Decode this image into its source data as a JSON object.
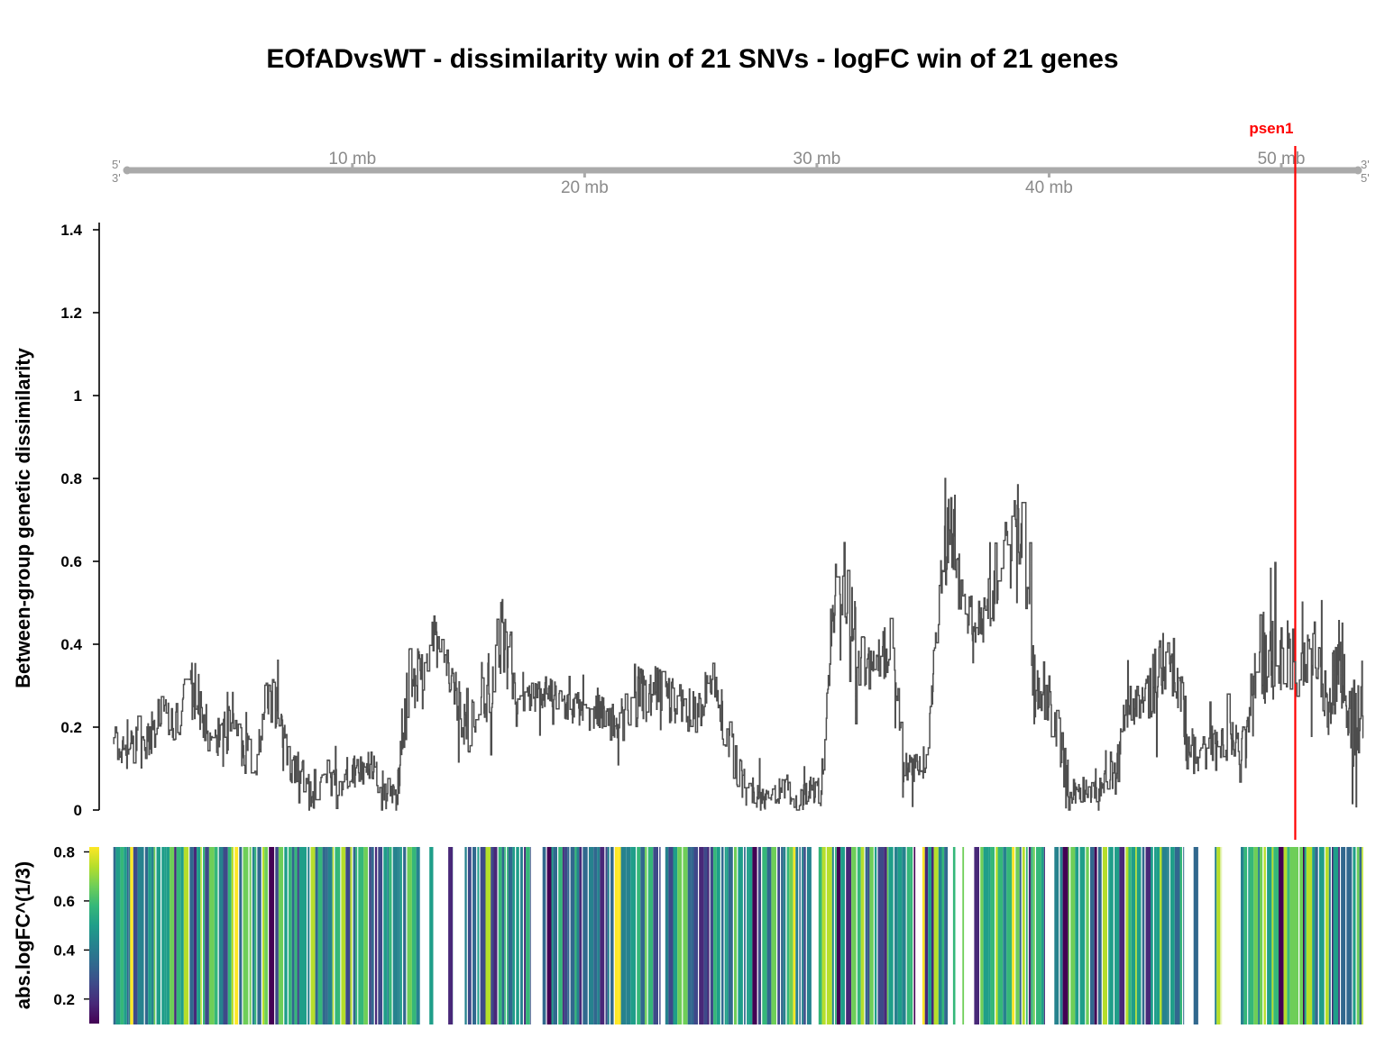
{
  "chart_data": {
    "type": "line",
    "title": "EOfADvsWT - dissimilarity win of 21 SNVs - logFC win of 21 genes",
    "ideogram": {
      "start_labels": [
        "5'",
        "3'"
      ],
      "end_labels": [
        "3'",
        "5'"
      ],
      "ticks": [
        {
          "mb": 10,
          "label": "10 mb"
        },
        {
          "mb": 20,
          "label": "20 mb"
        },
        {
          "mb": 30,
          "label": "30 mb"
        },
        {
          "mb": 40,
          "label": "40 mb"
        },
        {
          "mb": 50,
          "label": "50 mb"
        }
      ],
      "range_mb": [
        0.3,
        53.3
      ],
      "color": "#aaaaaa"
    },
    "marker": {
      "label": "psen1",
      "mb": 50.6,
      "color": "#ff0000"
    },
    "line_panel": {
      "ylabel": "Between-group genetic dissimilarity",
      "yticks": [
        {
          "v": 0,
          "label": "0"
        },
        {
          "v": 0.2,
          "label": "0.2"
        },
        {
          "v": 0.4,
          "label": "0.4"
        },
        {
          "v": 0.6,
          "label": "0.6"
        },
        {
          "v": 0.8,
          "label": "0.8"
        },
        {
          "v": 1,
          "label": "1"
        },
        {
          "v": 1.2,
          "label": "1.2"
        },
        {
          "v": 1.4,
          "label": "1.4"
        }
      ],
      "ylim": [
        0,
        1.4
      ],
      "xlim_mb": [
        -0.3,
        53.3
      ],
      "line_color": "#4d4d4d",
      "series": [
        {
          "x": [
            0.3,
            0.8,
            1.3,
            1.8,
            2.3,
            2.8,
            3.3,
            3.8,
            4.3,
            4.8,
            5.3,
            5.8,
            6.3,
            6.8,
            7.3,
            7.8,
            8.3,
            8.8,
            9.3,
            9.8,
            10.3,
            10.8,
            11.3,
            11.8,
            12.3,
            12.8,
            13.3,
            13.8,
            14.3,
            14.8,
            15.3,
            15.8,
            16.3,
            16.8,
            17.3,
            17.8,
            18.3,
            18.8,
            19.3,
            19.8,
            20.3,
            20.8,
            21.3,
            21.8,
            22.3,
            22.8,
            23.3,
            23.8,
            24.3,
            24.8,
            25.3,
            25.8,
            26.3,
            26.8,
            27.3,
            27.8,
            28.3,
            28.8,
            29.3,
            29.8,
            30.3,
            30.8,
            31.3,
            31.8,
            32.3,
            32.8,
            33.3,
            33.8,
            34.3,
            34.8,
            35.3,
            35.8,
            36.3,
            36.8,
            37.3,
            37.8,
            38.3,
            38.8,
            39.3,
            39.8,
            40.3,
            40.8,
            41.3,
            41.8,
            42.3,
            42.8,
            43.3,
            43.8,
            44.3,
            44.8,
            45.3,
            45.8,
            46.3,
            46.8,
            47.3,
            47.8,
            48.3,
            48.8,
            49.3,
            49.8,
            50.3,
            50.8,
            51.3,
            51.8,
            52.3,
            52.8,
            53.3
          ],
          "y": [
            0.16,
            0.14,
            0.15,
            0.17,
            0.22,
            0.21,
            0.25,
            0.3,
            0.19,
            0.18,
            0.2,
            0.14,
            0.1,
            0.28,
            0.25,
            0.12,
            0.08,
            0.03,
            0.1,
            0.06,
            0.1,
            0.09,
            0.11,
            0.05,
            0.03,
            0.3,
            0.32,
            0.42,
            0.37,
            0.28,
            0.18,
            0.27,
            0.33,
            0.42,
            0.3,
            0.28,
            0.27,
            0.29,
            0.26,
            0.24,
            0.24,
            0.25,
            0.22,
            0.2,
            0.29,
            0.27,
            0.28,
            0.26,
            0.26,
            0.23,
            0.26,
            0.3,
            0.18,
            0.08,
            0.05,
            0.03,
            0.04,
            0.06,
            0.02,
            0.05,
            0.04,
            0.5,
            0.56,
            0.38,
            0.34,
            0.36,
            0.4,
            0.1,
            0.1,
            0.12,
            0.52,
            0.69,
            0.48,
            0.45,
            0.47,
            0.58,
            0.65,
            0.7,
            0.3,
            0.28,
            0.2,
            0.06,
            0.05,
            0.04,
            0.06,
            0.08,
            0.26,
            0.25,
            0.3,
            0.36,
            0.33,
            0.18,
            0.14,
            0.15,
            0.17,
            0.16,
            0.15,
            0.4,
            0.35,
            0.36,
            0.38,
            0.34,
            0.38,
            0.21,
            0.4,
            0.2,
            0.27
          ],
          "wiggle": [
            0.06,
            0.04,
            0.06,
            0.05,
            0.07,
            0.05,
            0.06,
            0.08,
            0.05,
            0.05,
            0.06,
            0.06,
            0.05,
            0.06,
            0.06,
            0.05,
            0.05,
            0.03,
            0.05,
            0.05,
            0.04,
            0.04,
            0.04,
            0.04,
            0.03,
            0.09,
            0.07,
            0.06,
            0.05,
            0.06,
            0.07,
            0.08,
            0.09,
            0.1,
            0.07,
            0.05,
            0.04,
            0.04,
            0.04,
            0.04,
            0.05,
            0.05,
            0.05,
            0.06,
            0.07,
            0.07,
            0.07,
            0.06,
            0.06,
            0.06,
            0.07,
            0.07,
            0.07,
            0.05,
            0.04,
            0.04,
            0.03,
            0.03,
            0.03,
            0.03,
            0.04,
            0.08,
            0.1,
            0.1,
            0.06,
            0.06,
            0.07,
            0.04,
            0.04,
            0.04,
            0.08,
            0.1,
            0.08,
            0.06,
            0.06,
            0.1,
            0.12,
            0.1,
            0.1,
            0.08,
            0.08,
            0.05,
            0.03,
            0.03,
            0.04,
            0.05,
            0.06,
            0.05,
            0.08,
            0.09,
            0.08,
            0.08,
            0.07,
            0.05,
            0.05,
            0.05,
            0.05,
            0.1,
            0.12,
            0.1,
            0.1,
            0.08,
            0.08,
            0.1,
            0.1,
            0.1,
            0.12
          ]
        }
      ]
    },
    "heat_panel": {
      "ylabel": "abs.logFC^(1/3)",
      "type": "heatmap",
      "colorbar_ticks": [
        {
          "v": 0.2,
          "label": "0.2"
        },
        {
          "v": 0.4,
          "label": "0.4"
        },
        {
          "v": 0.6,
          "label": "0.6"
        },
        {
          "v": 0.8,
          "label": "0.8"
        }
      ],
      "color_range": [
        0.1,
        0.82
      ],
      "palette": [
        "#440154",
        "#482878",
        "#3e4989",
        "#31688e",
        "#26828e",
        "#1f9e89",
        "#35b779",
        "#6ece58",
        "#b5de2b",
        "#fde725"
      ],
      "segments": [
        {
          "start": 0.3,
          "end": 13.3
        },
        {
          "start": 13.7,
          "end": 13.9
        },
        {
          "start": 14.5,
          "end": 14.7
        },
        {
          "start": 15.2,
          "end": 18.0
        },
        {
          "start": 18.5,
          "end": 23.5
        },
        {
          "start": 23.7,
          "end": 29.9
        },
        {
          "start": 30.2,
          "end": 34.3
        },
        {
          "start": 34.6,
          "end": 35.7
        },
        {
          "start": 35.9,
          "end": 36.0
        },
        {
          "start": 36.3,
          "end": 36.4
        },
        {
          "start": 36.8,
          "end": 39.8
        },
        {
          "start": 40.2,
          "end": 45.7
        },
        {
          "start": 46.1,
          "end": 46.3
        },
        {
          "start": 47.0,
          "end": 47.3
        },
        {
          "start": 48.1,
          "end": 53.3
        }
      ],
      "level_by_mb": [
        0.45,
        0.42,
        0.5,
        0.55,
        0.44,
        0.47,
        0.48,
        0.45,
        0.46,
        0.52,
        0.47,
        0.46,
        0.5,
        0.58,
        0.45,
        0.42,
        0.4,
        0.42,
        0.45,
        0.43,
        0.46,
        0.48,
        0.47,
        0.45,
        0.44,
        0.41,
        0.43,
        0.42,
        0.45,
        0.47,
        0.5,
        0.52,
        0.48,
        0.56,
        0.62,
        0.58,
        0.6,
        0.55,
        0.5,
        0.46,
        0.47,
        0.49,
        0.52,
        0.51,
        0.48,
        0.47,
        0.5,
        0.49,
        0.52,
        0.66,
        0.55,
        0.53,
        0.48
      ]
    }
  }
}
